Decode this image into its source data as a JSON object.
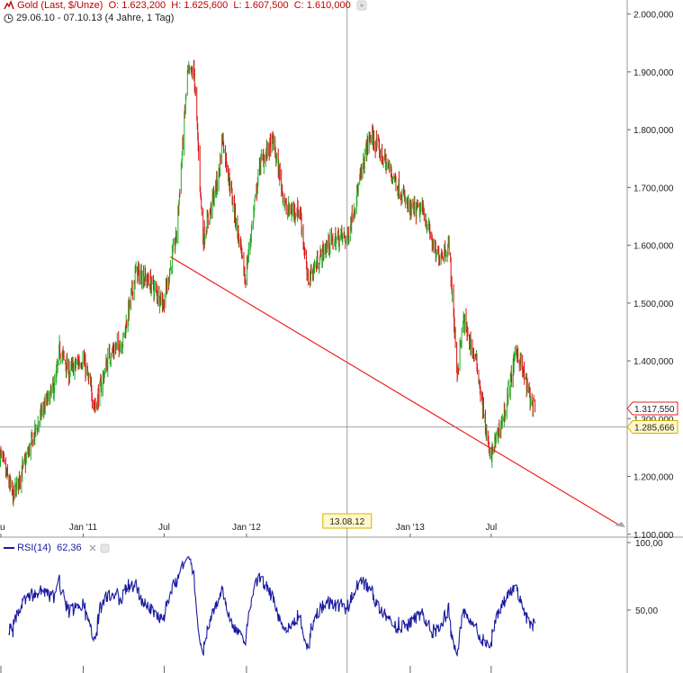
{
  "header": {
    "title": "Gold (Last, $/Unze)",
    "open": "O: 1.623,200",
    "high": "H: 1.625,600",
    "low": "L: 1.607,500",
    "close": "C: 1.610,000",
    "range": "29.06.10 - 07.10.13 (4 Jahre, 1 Tag)"
  },
  "rsi_header": {
    "label": "RSI(14)",
    "value": "62,36"
  },
  "crosshair": {
    "date_label": "13.08.12",
    "price_label": "1.285,666"
  },
  "last_price_label": "1.317,550",
  "colors": {
    "up": "#22aa22",
    "down": "#dd1111",
    "trendline": "#ee2222",
    "rsi": "#1a1aa0",
    "rsi_fill": "#8fdc8f",
    "crosshair": "#888888"
  },
  "chart_data": [
    {
      "type": "candlestick",
      "title": "Gold (Last, $/Unze)",
      "y_ticks": [
        "2.000,000",
        "1.900,000",
        "1.800,000",
        "1.700,000",
        "1.600,000",
        "1.500,000",
        "1.400,000",
        "1.300,000",
        "1.200,000",
        "1.100,000"
      ],
      "y_tick_values": [
        2000,
        1900,
        1800,
        1700,
        1600,
        1500,
        1400,
        1300,
        1200,
        1100
      ],
      "x_ticks": [
        "u",
        "Jan '11",
        "Jul",
        "Jan '12",
        "Jan '13",
        "Jul"
      ],
      "x_tick_dates": [
        "2010-07-01",
        "2011-01-01",
        "2011-07-01",
        "2012-01-01",
        "2013-01-01",
        "2013-07-01"
      ],
      "ylim": [
        1095,
        2015
      ],
      "xlim": [
        "2010-06-29",
        "2014-05-01"
      ],
      "approx_closes": [
        [
          "2010-06-29",
          1240
        ],
        [
          "2010-07-28",
          1165
        ],
        [
          "2010-08-31",
          1240
        ],
        [
          "2010-09-30",
          1310
        ],
        [
          "2010-10-31",
          1360
        ],
        [
          "2010-11-09",
          1420
        ],
        [
          "2010-11-30",
          1380
        ],
        [
          "2010-12-31",
          1405
        ],
        [
          "2011-01-28",
          1320
        ],
        [
          "2011-02-28",
          1410
        ],
        [
          "2011-03-31",
          1435
        ],
        [
          "2011-04-29",
          1555
        ],
        [
          "2011-05-31",
          1535
        ],
        [
          "2011-06-30",
          1500
        ],
        [
          "2011-07-29",
          1620
        ],
        [
          "2011-08-22",
          1895
        ],
        [
          "2011-09-06",
          1900
        ],
        [
          "2011-09-26",
          1610
        ],
        [
          "2011-10-31",
          1720
        ],
        [
          "2011-11-08",
          1790
        ],
        [
          "2011-12-29",
          1540
        ],
        [
          "2012-01-31",
          1740
        ],
        [
          "2012-02-29",
          1780
        ],
        [
          "2012-03-30",
          1660
        ],
        [
          "2012-04-30",
          1660
        ],
        [
          "2012-05-16",
          1540
        ],
        [
          "2012-06-29",
          1600
        ],
        [
          "2012-07-31",
          1615
        ],
        [
          "2012-08-13",
          1610
        ],
        [
          "2012-09-28",
          1775
        ],
        [
          "2012-10-05",
          1790
        ],
        [
          "2012-11-30",
          1710
        ],
        [
          "2012-12-31",
          1660
        ],
        [
          "2013-01-31",
          1660
        ],
        [
          "2013-02-28",
          1580
        ],
        [
          "2013-03-29",
          1598
        ],
        [
          "2013-04-16",
          1380
        ],
        [
          "2013-04-30",
          1470
        ],
        [
          "2013-05-31",
          1390
        ],
        [
          "2013-06-28",
          1230
        ],
        [
          "2013-07-31",
          1310
        ],
        [
          "2013-08-27",
          1420
        ],
        [
          "2013-09-30",
          1325
        ],
        [
          "2013-10-07",
          1310
        ]
      ],
      "last_value": 1317.55,
      "crosshair_value": 1285.666,
      "crosshair_date": "2012-08-13",
      "trendline": {
        "from": [
          "2011-07-15",
          1580
        ],
        "to": [
          "2014-04-15",
          1115
        ]
      }
    },
    {
      "type": "line",
      "title": "RSI(14)",
      "y_ticks": [
        "100,00",
        "50,00"
      ],
      "y_tick_values": [
        100,
        50
      ],
      "ylim": [
        0,
        100
      ],
      "last_value": 62.36
    }
  ]
}
